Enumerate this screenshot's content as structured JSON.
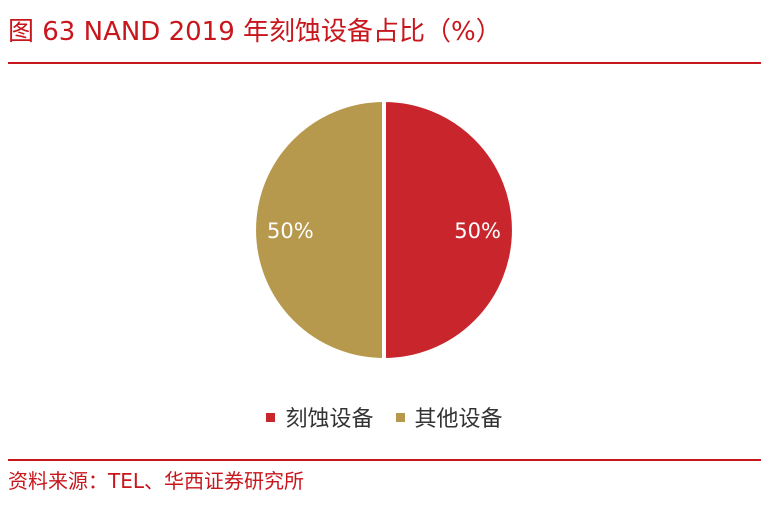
{
  "figure": {
    "title": "图 63   NAND 2019 年刻蚀设备占比（%）",
    "source": "资料来源：TEL、华西证券研究所"
  },
  "chart_data": {
    "type": "pie",
    "title": "NAND 2019 年刻蚀设备占比（%）",
    "categories": [
      "刻蚀设备",
      "其他设备"
    ],
    "values": [
      50,
      50
    ],
    "data_labels": [
      "50%",
      "50%"
    ],
    "colors": [
      "#c8262c",
      "#b7994e"
    ],
    "legend_position": "bottom"
  }
}
